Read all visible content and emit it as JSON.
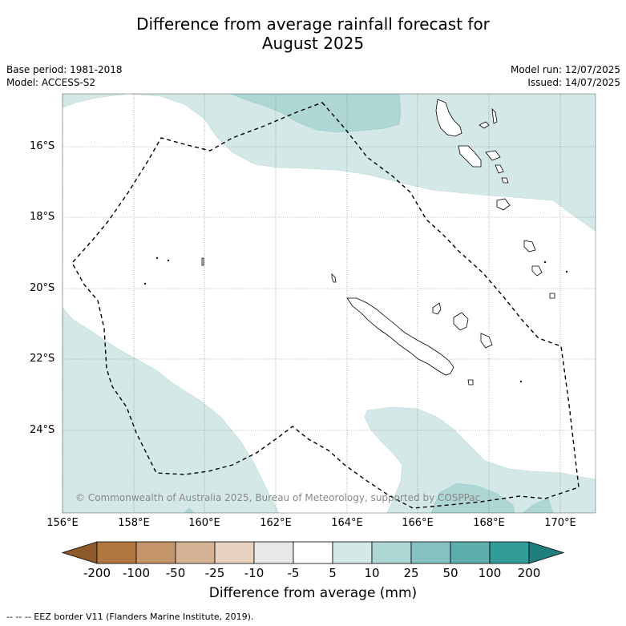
{
  "header": {
    "title_line1": "Difference from average rainfall forecast for",
    "title_line2": "August 2025"
  },
  "meta_left": {
    "base_period": "Base period: 1981-2018",
    "model": "Model: ACCESS-S2"
  },
  "meta_right": {
    "model_run": "Model run: 12/07/2025",
    "issued": "Issued: 14/07/2025"
  },
  "axes": {
    "lat_labels": [
      "16°S",
      "18°S",
      "20°S",
      "22°S",
      "24°S"
    ],
    "lon_labels": [
      "156°E",
      "158°E",
      "160°E",
      "162°E",
      "164°E",
      "166°E",
      "168°E",
      "170°E"
    ]
  },
  "copyright": "© Commonwealth of Australia 2025, Bureau of Meteorology, supported by COSPPac",
  "colorbar": {
    "title": "Difference from average (mm)",
    "labels": [
      "-200",
      "-100",
      "-50",
      "-25",
      "-10",
      "-5",
      "5",
      "10",
      "25",
      "50",
      "100",
      "200"
    ],
    "colors": {
      "below_min": "#8c5a2b",
      "bins": [
        "#b07840",
        "#c4956a",
        "#d4b394",
        "#e6d2bf",
        "#e8e8e6",
        "#ffffff",
        "#d4e9e7",
        "#aed6d5",
        "#86c2c1",
        "#5eaeac",
        "#339b98"
      ],
      "above_max": "#1f7f7c"
    }
  },
  "legend_footnote": "--  --  -- EEZ border V11 (Flanders Marine Institute, 2019).",
  "map": {
    "land_color": "#ffffff",
    "coastline_color": "#000000",
    "eez_line_color": "#000000",
    "gridline_color": "#777777"
  }
}
